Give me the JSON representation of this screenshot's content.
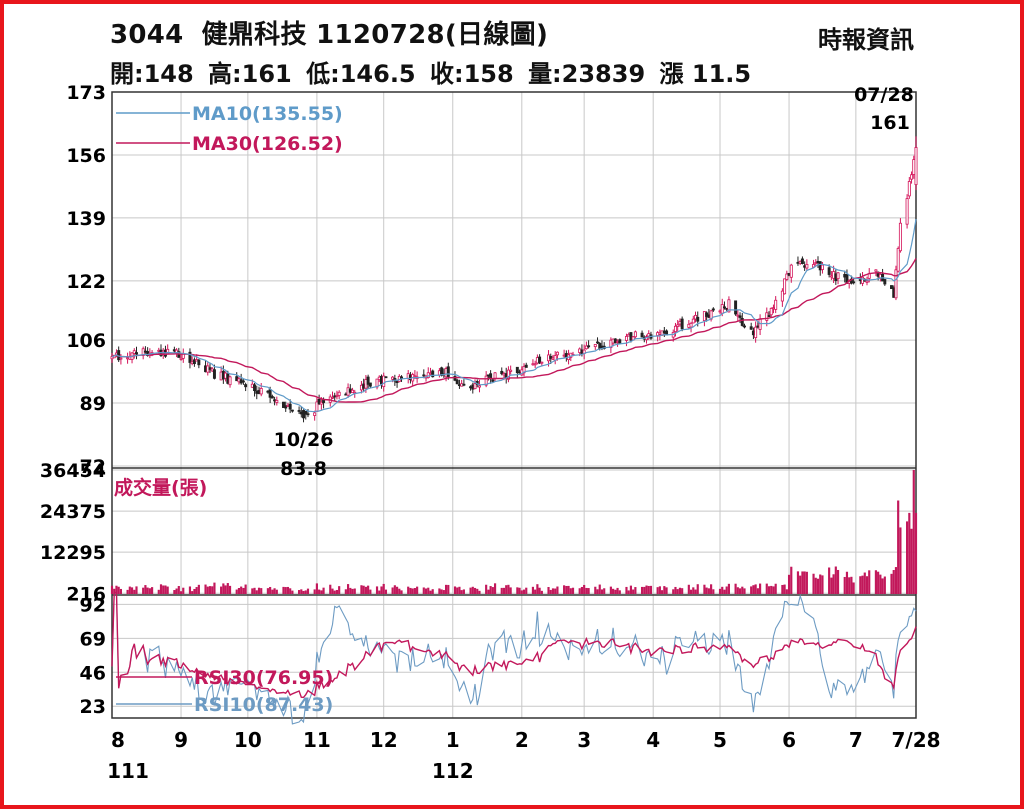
{
  "header": {
    "stock_code": "3044",
    "title": "健鼎科技 1120728(日線圖)",
    "source": "時報資訊"
  },
  "quote": {
    "open": "開:148",
    "high": "高:161",
    "low": "低:146.5",
    "close": "收:158",
    "volume": "量:23839",
    "change": "漲 11.5"
  },
  "colors": {
    "frame": "#e8161c",
    "up": "#d4145a",
    "down": "#222222",
    "ma10": "#5f9bc9",
    "ma30": "#c2185b",
    "volume": "#c2185b",
    "rsi10": "#6d9bc3",
    "rsi30": "#c2185b",
    "grid": "#c8c8c8"
  },
  "chart_data": [
    {
      "type": "candlestick",
      "title": "3044 健鼎科技 1120728(日線圖)",
      "ylim": [
        72,
        173
      ],
      "y_ticks": [
        "173",
        "156",
        "139",
        "122",
        "106",
        "89",
        "72"
      ],
      "y_tick_values": [
        173,
        156,
        139,
        122,
        106,
        89,
        72
      ],
      "x_ticks": [
        "8",
        "9",
        "10",
        "11",
        "12",
        "1",
        "2",
        "3",
        "4",
        "5",
        "6",
        "7",
        "7/28"
      ],
      "x_tick_months": [
        "2022-08",
        "2022-09",
        "2022-10",
        "2022-11",
        "2022-12",
        "2023-01",
        "2023-02",
        "2023-03",
        "2023-04",
        "2023-05",
        "2023-06",
        "2023-07",
        "2023-07-28"
      ],
      "year_labels": [
        "111",
        "112"
      ],
      "legend": [
        {
          "name": "MA10(135.55)",
          "key": "ma10"
        },
        {
          "name": "MA30(126.52)",
          "key": "ma30"
        }
      ],
      "annotations": [
        {
          "date": "10/26",
          "value_label": "83.8",
          "value": 83.8,
          "kind": "low"
        },
        {
          "date": "07/28",
          "value_label": "161",
          "value": 161,
          "kind": "high"
        }
      ],
      "close_anchors": [
        {
          "date": "2022-08-01",
          "close": 101
        },
        {
          "date": "2022-08-15",
          "close": 103
        },
        {
          "date": "2022-08-31",
          "close": 102.5
        },
        {
          "date": "2022-09-15",
          "close": 97
        },
        {
          "date": "2022-09-30",
          "close": 94
        },
        {
          "date": "2022-10-14",
          "close": 90
        },
        {
          "date": "2022-10-26",
          "close": 85
        },
        {
          "date": "2022-11-07",
          "close": 91
        },
        {
          "date": "2022-11-25",
          "close": 94.5
        },
        {
          "date": "2022-12-15",
          "close": 96.5
        },
        {
          "date": "2022-12-29",
          "close": 97.5
        },
        {
          "date": "2023-01-05",
          "close": 93
        },
        {
          "date": "2023-01-30",
          "close": 98
        },
        {
          "date": "2023-02-15",
          "close": 102
        },
        {
          "date": "2023-03-01",
          "close": 103
        },
        {
          "date": "2023-03-20",
          "close": 107
        },
        {
          "date": "2023-04-06",
          "close": 108
        },
        {
          "date": "2023-04-25",
          "close": 113
        },
        {
          "date": "2023-05-05",
          "close": 116
        },
        {
          "date": "2023-05-15",
          "close": 108
        },
        {
          "date": "2023-05-25",
          "close": 114
        },
        {
          "date": "2023-06-02",
          "close": 126
        },
        {
          "date": "2023-06-12",
          "close": 127
        },
        {
          "date": "2023-06-28",
          "close": 121
        },
        {
          "date": "2023-07-10",
          "close": 124
        },
        {
          "date": "2023-07-18",
          "close": 118
        },
        {
          "date": "2023-07-21",
          "close": 138
        },
        {
          "date": "2023-07-26",
          "close": 150
        },
        {
          "date": "2023-07-28",
          "close": 158
        }
      ],
      "ma10_last": 135.55,
      "ma30_last": 126.52
    },
    {
      "type": "bar",
      "title": "成交量(張)",
      "ylim": [
        0,
        36454
      ],
      "y_ticks": [
        "36454",
        "24375",
        "12295",
        "216"
      ],
      "y_tick_values": [
        36454,
        24375,
        12295,
        216
      ],
      "last_volume": 23839
    },
    {
      "type": "line",
      "title": "RSI",
      "ylim": [
        15,
        97
      ],
      "y_ticks": [
        "92",
        "69",
        "46",
        "23"
      ],
      "y_tick_values": [
        92,
        69,
        46,
        23
      ],
      "legend": [
        {
          "name": "RSI30(76.95)",
          "key": "rsi30"
        },
        {
          "name": "RSI10(87.43)",
          "key": "rsi10"
        }
      ],
      "rsi30_last": 76.95,
      "rsi10_last": 87.43
    }
  ]
}
